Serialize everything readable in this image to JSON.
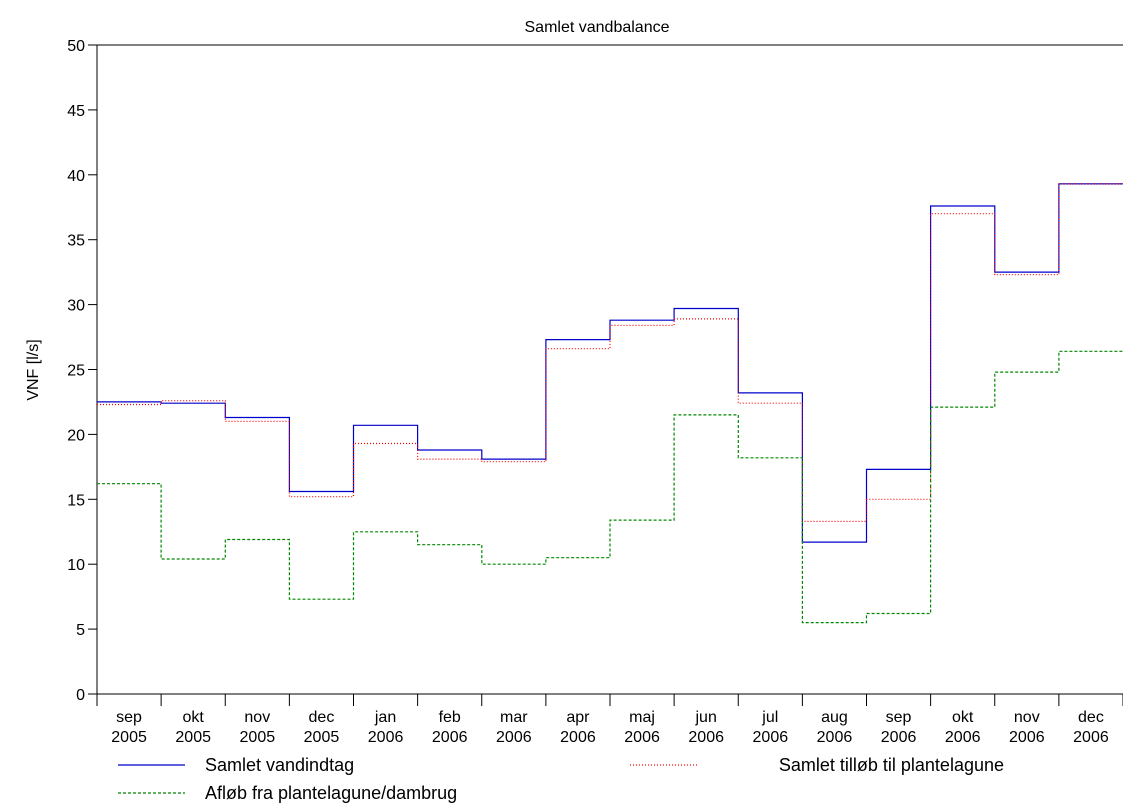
{
  "chart_data": {
    "type": "line",
    "step": true,
    "title": "Samlet vandbalance",
    "ylabel": "VNF [l/s]",
    "xlabel": "",
    "ylim": [
      0,
      50
    ],
    "yticks": [
      "0",
      "5",
      "10",
      "15",
      "20",
      "25",
      "30",
      "35",
      "40",
      "45",
      "50"
    ],
    "ytick_values": [
      0,
      5,
      10,
      15,
      20,
      25,
      30,
      35,
      40,
      45,
      50
    ],
    "categories": [
      {
        "month": "sep",
        "year": "2005"
      },
      {
        "month": "okt",
        "year": "2005"
      },
      {
        "month": "nov",
        "year": "2005"
      },
      {
        "month": "dec",
        "year": "2005"
      },
      {
        "month": "jan",
        "year": "2006"
      },
      {
        "month": "feb",
        "year": "2006"
      },
      {
        "month": "mar",
        "year": "2006"
      },
      {
        "month": "apr",
        "year": "2006"
      },
      {
        "month": "maj",
        "year": "2006"
      },
      {
        "month": "jun",
        "year": "2006"
      },
      {
        "month": "jul",
        "year": "2006"
      },
      {
        "month": "aug",
        "year": "2006"
      },
      {
        "month": "sep",
        "year": "2006"
      },
      {
        "month": "okt",
        "year": "2006"
      },
      {
        "month": "nov",
        "year": "2006"
      },
      {
        "month": "dec",
        "year": "2006"
      }
    ],
    "series": [
      {
        "name": "Samlet vandindtag",
        "color": "#0000cc",
        "dash": "",
        "values": [
          22.5,
          22.4,
          21.3,
          15.6,
          20.7,
          18.8,
          18.1,
          27.3,
          28.8,
          29.7,
          23.2,
          11.7,
          17.3,
          37.6,
          32.5,
          39.3
        ]
      },
      {
        "name": "Samlet tilløb til plantelagune",
        "color": "#ff0000",
        "dash": "1,2",
        "values": [
          22.3,
          22.6,
          21.0,
          15.2,
          19.3,
          18.1,
          17.9,
          26.6,
          28.4,
          28.9,
          22.4,
          13.3,
          15.0,
          37.0,
          32.3,
          39.3
        ]
      },
      {
        "name": "Afløb fra plantelagune/dambrug",
        "color": "#008800",
        "dash": "3,2",
        "values": [
          16.2,
          10.4,
          11.9,
          7.3,
          12.5,
          11.5,
          10.0,
          10.5,
          13.4,
          21.5,
          18.2,
          5.5,
          6.2,
          22.1,
          24.8,
          26.4
        ]
      }
    ],
    "legend_position": "bottom",
    "grid": false
  }
}
